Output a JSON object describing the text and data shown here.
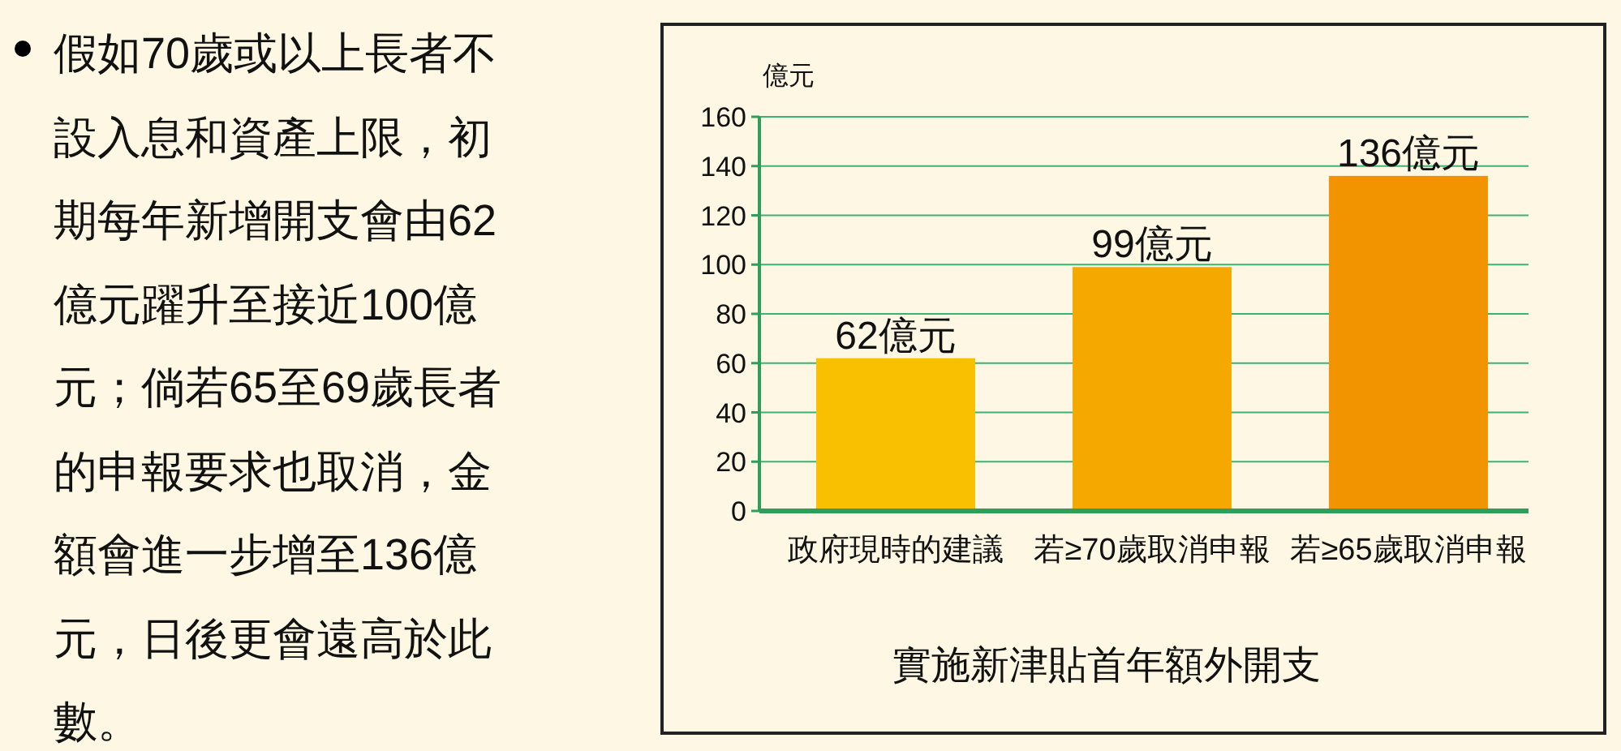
{
  "chart_data": {
    "type": "bar",
    "title": "實施新津貼首年額外開支",
    "ylabel": "億元",
    "categories": [
      "政府現時的建議",
      "若≥70歲取消申報",
      "若≥65歲取消申報"
    ],
    "values": [
      62,
      99,
      136
    ],
    "colors": [
      "#f8c000",
      "#f5a800",
      "#f29400"
    ],
    "value_labels": [
      "62億元",
      "99億元",
      "136億元"
    ],
    "ylim": [
      0,
      160
    ],
    "yticks": [
      0,
      20,
      40,
      60,
      80,
      100,
      120,
      140,
      160
    ],
    "grid": "y",
    "annotations": [
      "假如70歲或以上長者不設入息和資產上限，初期每年新增開支會由62億元躍升至接近100億元；倘若65至69歲長者的申報要求也取消，金額會進一步增至136億元，日後更會遠高於此數。"
    ]
  }
}
